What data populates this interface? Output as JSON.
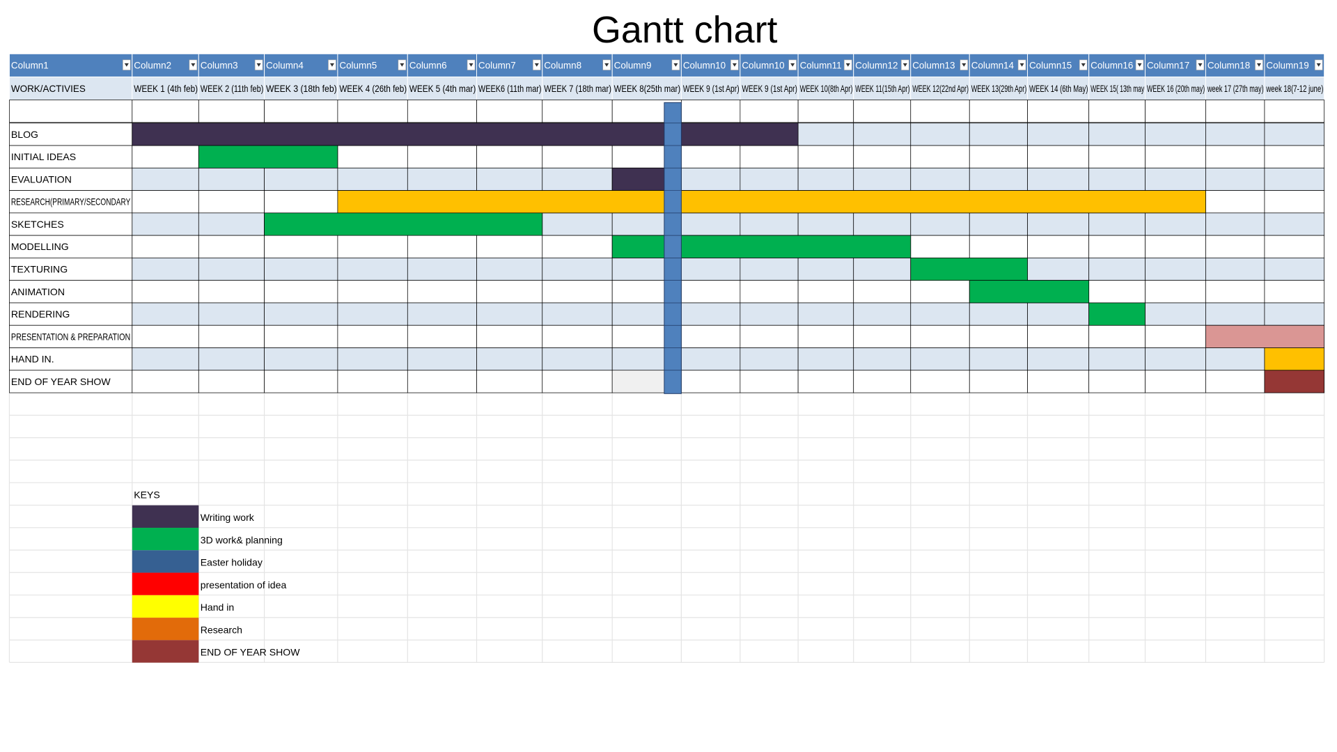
{
  "title": "Gantt chart",
  "table": {
    "columns": [
      "Column1",
      "Column2",
      "Column3",
      "Column4",
      "Column5",
      "Column6",
      "Column7",
      "Column8",
      "Column9",
      "Column10",
      "Column10",
      "Column11",
      "Column12",
      "Column13",
      "Column14",
      "Column15",
      "Column16",
      "Column17",
      "Column18",
      "Column19"
    ],
    "weeks": [
      "WORK/ACTIVIES",
      "WEEK 1 (4th feb)",
      "WEEK 2 (11th feb)",
      "WEEK 3 (18th feb)",
      "WEEK 4 (26th feb)",
      "WEEK 5 (4th mar)",
      "WEEK6 (11th mar)",
      "WEEK 7 (18th mar)",
      "WEEK 8(25th mar)",
      "WEEK 9 (1st Apr)",
      "WEEK 9 (1st Apr)",
      "WEEK 10(8th Apr)",
      "WEEK 11(15th Apr)",
      "WEEK 12(22nd Apr)",
      "WEEK 13(29th Apr)",
      "WEEK 14 (6th May)",
      "WEEK 15( 13th may",
      "WEEK 16 (20th may)",
      "week 17 (27th may)",
      "week 18(7-12 june)"
    ],
    "tasks": [
      {
        "label": "BLOG",
        "spans": [
          {
            "from": 1,
            "to": 10,
            "color": "#3f3151"
          }
        ]
      },
      {
        "label": "INITIAL IDEAS",
        "spans": [
          {
            "from": 2,
            "to": 3,
            "color": "#00b050"
          }
        ]
      },
      {
        "label": "EVALUATION",
        "spans": [
          {
            "from": 8,
            "to": 8,
            "color": "#3f3151"
          }
        ]
      },
      {
        "label": "RESEARCH(PRIMARY/SECONDARY",
        "spans": [
          {
            "from": 4,
            "to": 17,
            "color": "#ffc000"
          }
        ]
      },
      {
        "label": "SKETCHES",
        "spans": [
          {
            "from": 3,
            "to": 6,
            "color": "#00b050"
          }
        ]
      },
      {
        "label": "MODELLING",
        "spans": [
          {
            "from": 8,
            "to": 12,
            "color": "#00b050"
          }
        ]
      },
      {
        "label": "TEXTURING",
        "spans": [
          {
            "from": 13,
            "to": 14,
            "color": "#00b050"
          }
        ]
      },
      {
        "label": "ANIMATION",
        "spans": [
          {
            "from": 14,
            "to": 15,
            "color": "#00b050"
          }
        ]
      },
      {
        "label": "RENDERING",
        "spans": [
          {
            "from": 16,
            "to": 16,
            "color": "#00b050"
          }
        ]
      },
      {
        "label": "PRESENTATION & PREPARATION",
        "spans": [
          {
            "from": 18,
            "to": 19,
            "color": "#da9694"
          }
        ]
      },
      {
        "label": "HAND IN.",
        "spans": [
          {
            "from": 19,
            "to": 19,
            "color": "#ffc000"
          }
        ]
      },
      {
        "label": "END OF YEAR SHOW",
        "spans": [
          {
            "from": 19,
            "to": 19,
            "color": "#953735"
          }
        ]
      }
    ]
  },
  "keys": {
    "title": "KEYS",
    "items": [
      {
        "label": "Writing work",
        "color": "#3f3151"
      },
      {
        "label": "3D work& planning",
        "color": "#00b050"
      },
      {
        "label": "Easter holiday",
        "color": "#366092"
      },
      {
        "label": "presentation of idea",
        "color": "#ff0000"
      },
      {
        "label": "Hand in",
        "color": "#ffff00"
      },
      {
        "label": "Research",
        "color": "#e26b0a"
      },
      {
        "label": "END OF YEAR SHOW",
        "color": "#953735"
      }
    ]
  }
}
